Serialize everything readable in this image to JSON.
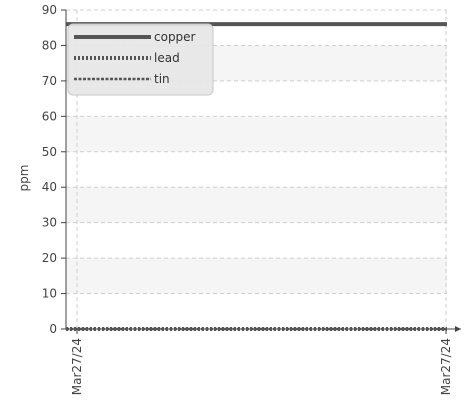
{
  "chart_data": {
    "type": "line",
    "title": "",
    "xlabel": "",
    "ylabel": "ppm",
    "ylim": [
      0,
      90
    ],
    "y_ticks": [
      0,
      10,
      20,
      30,
      40,
      50,
      60,
      70,
      80,
      90
    ],
    "x": [
      "Mar27/24",
      "Mar27/24"
    ],
    "grid": true,
    "legend_position": "top-left",
    "series": [
      {
        "name": "copper",
        "values": [
          86,
          86
        ],
        "color": "#555555",
        "style": "solid"
      },
      {
        "name": "lead",
        "values": [
          0,
          0
        ],
        "color": "#555555",
        "style": "dotted"
      },
      {
        "name": "tin",
        "values": [
          0,
          0
        ],
        "color": "#555555",
        "style": "dashed"
      }
    ]
  }
}
